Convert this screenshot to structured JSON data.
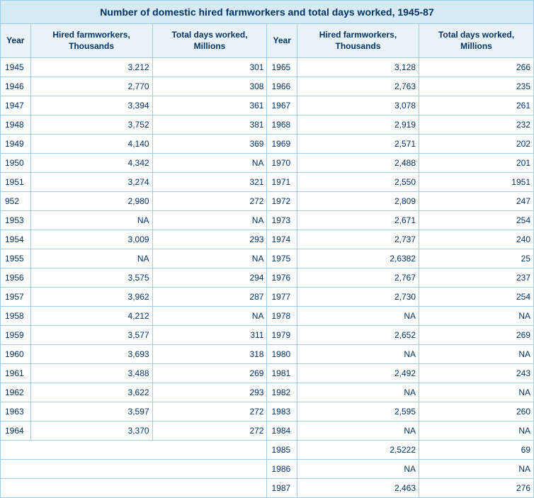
{
  "title": "Number of domestic hired farmworkers and total days worked, 1945-87",
  "headers": {
    "year": "Year",
    "hired": "Hired farmworkers, Thousands",
    "days": "Total days worked, Millions"
  },
  "colors": {
    "border": "#9ecfe8",
    "title_bg": "#d6eaf4",
    "header_bg": "#eaf3f9",
    "text": "#003366"
  },
  "font": {
    "family": "Verdana, Arial, sans-serif",
    "title_size_pt": 14,
    "header_size_pt": 12,
    "body_size_pt": 12
  },
  "left": [
    {
      "year": "1945",
      "hired": "3,212",
      "days": "301"
    },
    {
      "year": "1946",
      "hired": "2,770",
      "days": "308"
    },
    {
      "year": "1947",
      "hired": "3,394",
      "days": "361"
    },
    {
      "year": "1948",
      "hired": "3,752",
      "days": "381"
    },
    {
      "year": "1949",
      "hired": "4,140",
      "days": "369"
    },
    {
      "year": "1950",
      "hired": "4,342",
      "days": "NA"
    },
    {
      "year": "1951",
      "hired": "3,274",
      "days": "321"
    },
    {
      "year": "952",
      "hired": "2,980",
      "days": "272"
    },
    {
      "year": "1953",
      "hired": "NA",
      "days": "NA"
    },
    {
      "year": "1954",
      "hired": "3,009",
      "days": "293"
    },
    {
      "year": "1955",
      "hired": "NA",
      "days": "NA"
    },
    {
      "year": "1956",
      "hired": "3,575",
      "days": "294"
    },
    {
      "year": "1957",
      "hired": "3,962",
      "days": "287"
    },
    {
      "year": "1958",
      "hired": "4,212",
      "days": "NA"
    },
    {
      "year": "1959",
      "hired": "3,577",
      "days": "311"
    },
    {
      "year": "1960",
      "hired": "3,693",
      "days": "318"
    },
    {
      "year": "1961",
      "hired": "3,488",
      "days": "269"
    },
    {
      "year": "1962",
      "hired": "3,622",
      "days": "293"
    },
    {
      "year": "1963",
      "hired": "3,597",
      "days": "272"
    },
    {
      "year": "1964",
      "hired": "3,370",
      "days": "272"
    }
  ],
  "right": [
    {
      "year": "1965",
      "hired": "3,128",
      "days": "266"
    },
    {
      "year": "1966",
      "hired": "2,763",
      "days": "235"
    },
    {
      "year": "1967",
      "hired": "3,078",
      "days": "261"
    },
    {
      "year": "1968",
      "hired": "2,919",
      "days": "232"
    },
    {
      "year": "1969",
      "hired": "2,571",
      "days": "202"
    },
    {
      "year": "1970",
      "hired": "2,488",
      "days": "201"
    },
    {
      "year": "1971",
      "hired": "2,550",
      "days": "1951"
    },
    {
      "year": "1972",
      "hired": "2,809",
      "days": "247"
    },
    {
      "year": "1973",
      "hired": "2,671",
      "days": "254"
    },
    {
      "year": "1974",
      "hired": "2,737",
      "days": "240"
    },
    {
      "year": "1975",
      "hired": "2,6382",
      "days": "25"
    },
    {
      "year": "1976",
      "hired": "2,767",
      "days": "237"
    },
    {
      "year": "1977",
      "hired": "2,730",
      "days": "254"
    },
    {
      "year": "1978",
      "hired": "NA",
      "days": "NA"
    },
    {
      "year": "1979",
      "hired": "2,652",
      "days": "269"
    },
    {
      "year": "1980",
      "hired": "NA",
      "days": "NA"
    },
    {
      "year": "1981",
      "hired": "2,492",
      "days": "243"
    },
    {
      "year": "1982",
      "hired": "NA",
      "days": "NA"
    },
    {
      "year": "1983",
      "hired": "2,595",
      "days": "260"
    },
    {
      "year": "1984",
      "hired": "NA",
      "days": "NA"
    },
    {
      "year": "1985",
      "hired": "2,5222",
      "days": "69"
    },
    {
      "year": "1986",
      "hired": "NA",
      "days": "NA"
    },
    {
      "year": "1987",
      "hired": "2,463",
      "days": "276"
    }
  ]
}
